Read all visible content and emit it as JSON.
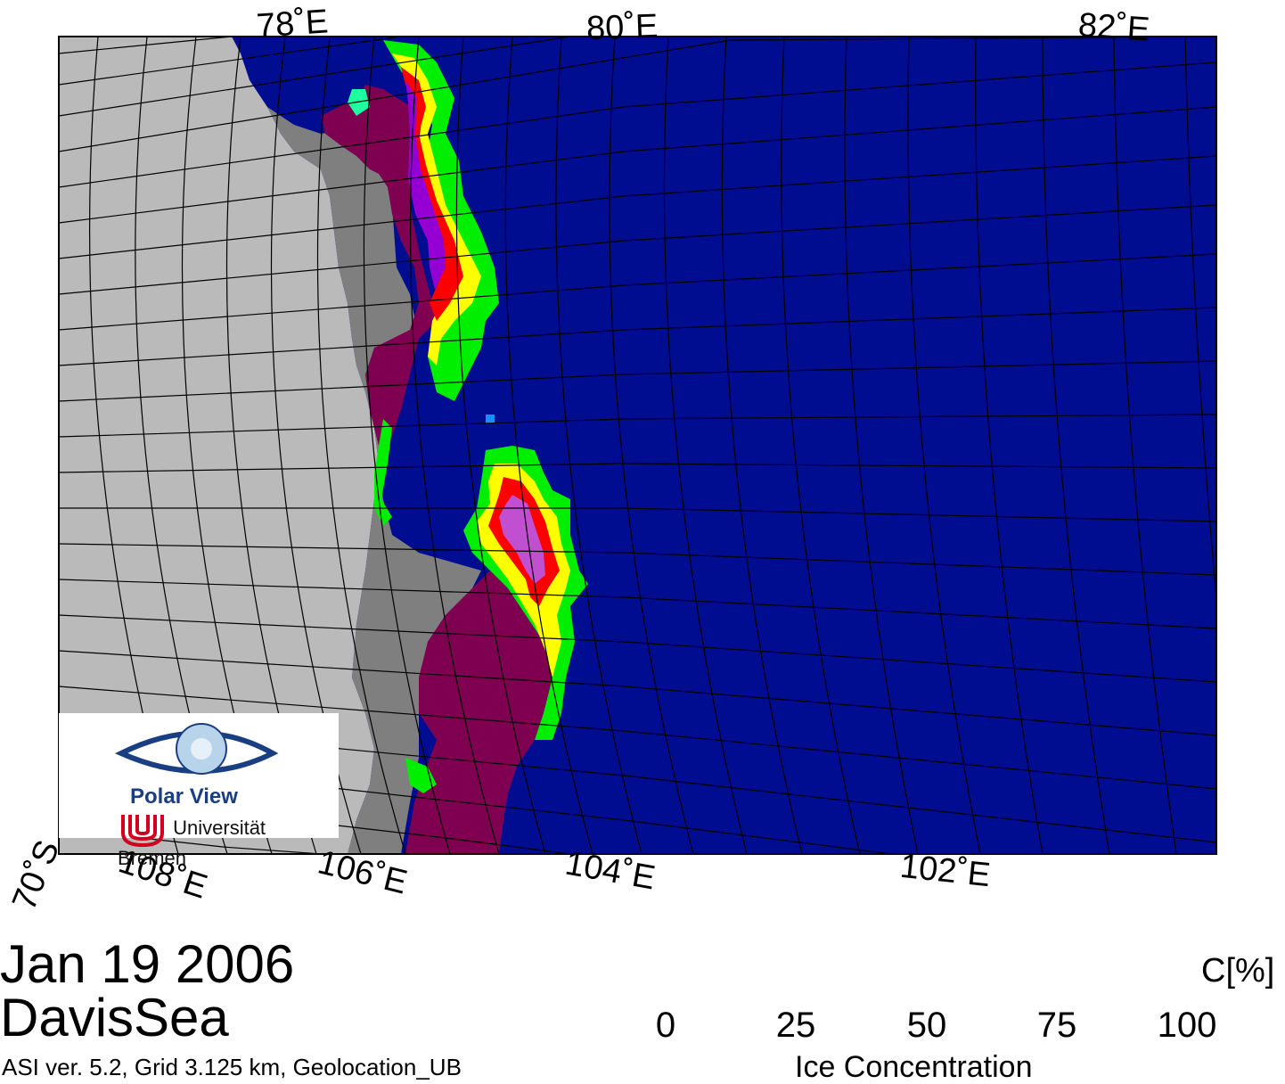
{
  "map": {
    "colors": {
      "ocean": "#000d90",
      "land": "#bababa",
      "ice_shelf": "#7f7f7f",
      "dense_ice": "#7f0050",
      "grid": "#000000"
    },
    "lon_labels_top": [
      "78˚E",
      "80˚E",
      "82˚E"
    ],
    "lon_labels_bottom": [
      "108˚E",
      "106˚E",
      "104˚E",
      "102˚E"
    ],
    "lat_label": "70˚S"
  },
  "title": {
    "date": "Jan 19 2006",
    "region": "DavisSea"
  },
  "footer": {
    "info": "ASI ver. 5.2,  Grid 3.125 km, Geolocation_UB"
  },
  "legend": {
    "unit": "C[%]",
    "title": "Ice Concentration",
    "ticks": [
      "0",
      "25",
      "50",
      "75",
      "100"
    ],
    "colors": [
      "#000d90",
      "#1e8cff",
      "#1effa0",
      "#228b22",
      "#00ee00",
      "#7fff00",
      "#adff2f",
      "#ffff00",
      "#ff8000",
      "#ff0000",
      "#c050d0",
      "#9400d3",
      "#ffb4ff"
    ]
  },
  "logo": {
    "name": "Polar View",
    "institution": "Universität Bremen"
  }
}
